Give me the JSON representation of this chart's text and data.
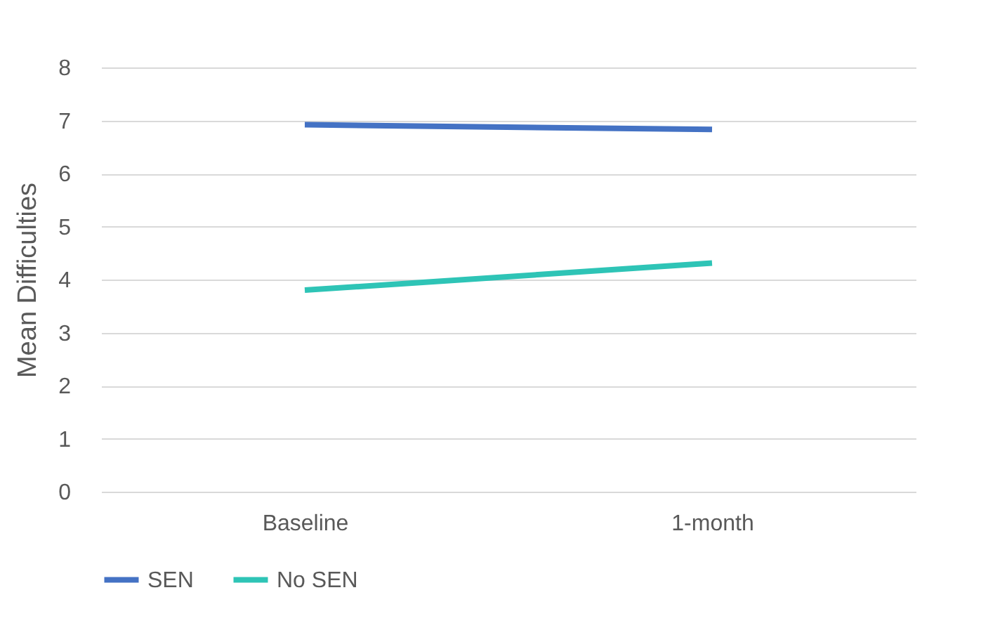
{
  "chart_data": {
    "type": "line",
    "ylabel": "Mean Difficulties",
    "categories": [
      "Baseline",
      "1-month"
    ],
    "series": [
      {
        "name": "SEN",
        "color": "#4472c4",
        "values": [
          6.92,
          6.83
        ]
      },
      {
        "name": "No SEN",
        "color": "#2ec4b6",
        "values": [
          3.8,
          4.31
        ]
      }
    ],
    "ylim": [
      0,
      8
    ],
    "yticks": [
      0,
      1,
      2,
      3,
      4,
      5,
      6,
      7,
      8
    ],
    "grid": "y",
    "legend": "bottom",
    "marker": "none",
    "line_style": "solid"
  }
}
